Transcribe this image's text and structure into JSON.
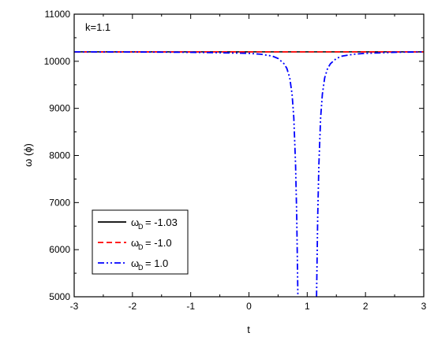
{
  "chart_data": {
    "type": "line",
    "title": "",
    "xlabel": "t",
    "ylabel": "ω (ϕ)",
    "xlim": [
      -3,
      3
    ],
    "ylim": [
      5000,
      11000
    ],
    "xticks": [
      -3,
      -2,
      -1,
      0,
      1,
      2,
      3
    ],
    "yticks": [
      5000,
      6000,
      7000,
      8000,
      9000,
      10000,
      11000
    ],
    "annotation": "k=1.1",
    "legend_position": "lower-left",
    "series": [
      {
        "name": "= -1.03",
        "symbol": "ω",
        "subscript": "D",
        "color": "#000000",
        "dash": "solid",
        "x": [
          -3,
          -2,
          -1,
          0,
          1,
          2,
          3
        ],
        "y": [
          10200,
          10200,
          10200,
          10200,
          10200,
          10200,
          10200
        ]
      },
      {
        "name": "= -1.0",
        "symbol": "ω",
        "subscript": "D",
        "color": "#ff0000",
        "dash": "dashed",
        "x": [
          -3,
          -2,
          -1,
          0,
          1,
          2,
          3
        ],
        "y": [
          10200,
          10200,
          10200,
          10200,
          10200,
          10200,
          10200
        ]
      },
      {
        "name": "= 1.0",
        "symbol": "ω",
        "subscript": "D",
        "color": "#0000ff",
        "dash": "dash-dot-dot",
        "segments": [
          {
            "x": [
              -3,
              -2,
              -1,
              -0.5,
              0,
              0.2,
              0.4,
              0.5,
              0.6,
              0.65,
              0.7,
              0.74,
              0.77,
              0.8,
              0.82,
              0.84
            ],
            "y": [
              10200,
              10198,
              10190,
              10182,
              10168,
              10150,
              10110,
              10060,
              9950,
              9850,
              9650,
              9300,
              8800,
              7800,
              6700,
              5000
            ]
          },
          {
            "x": [
              1.16,
              1.18,
              1.2,
              1.23,
              1.26,
              1.3,
              1.35,
              1.4,
              1.5,
              1.6,
              1.8,
              2,
              2.5,
              3
            ],
            "y": [
              5000,
              6700,
              7800,
              8800,
              9300,
              9650,
              9850,
              9950,
              10060,
              10110,
              10150,
              10168,
              10190,
              10200
            ]
          }
        ]
      }
    ]
  }
}
